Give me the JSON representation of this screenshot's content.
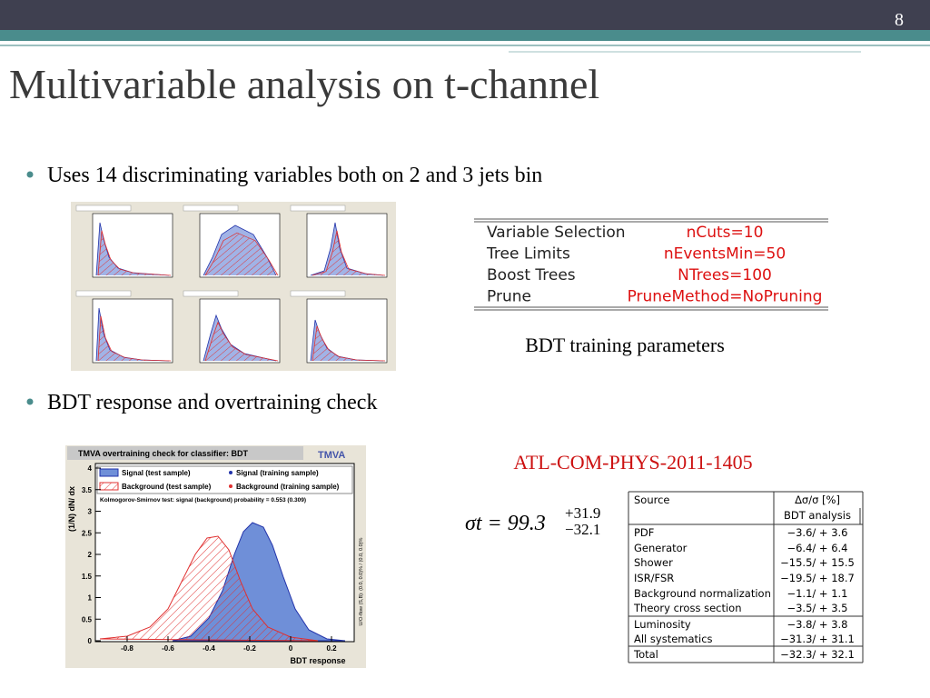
{
  "slide_number": "8",
  "title": "Multivariable analysis on t-channel",
  "bullets": [
    "Uses 14 discriminating variables both on 2 and 3 jets bin",
    "BDT response and overtraining check"
  ],
  "parameters_table": {
    "rows": [
      [
        "Variable Selection",
        "nCuts=10"
      ],
      [
        "Tree Limits",
        "nEventsMin=50"
      ],
      [
        "Boost Trees",
        "NTrees=100"
      ],
      [
        "Prune",
        "PruneMethod=NoPruning"
      ]
    ],
    "caption": "BDT training parameters"
  },
  "reference": "ATL-COM-PHYS-2011-1405",
  "cross_section": {
    "formula": "σt = 99.3",
    "up": "+31.9",
    "down": "−32.1"
  },
  "systematics_table": {
    "header": [
      "Source",
      "Δσ/σ [%]"
    ],
    "subheader": "BDT analysis",
    "rows": [
      [
        "PDF",
        "−3.6/ + 3.6"
      ],
      [
        "Generator",
        "−6.4/ + 6.4"
      ],
      [
        "Shower",
        "−15.5/ + 15.5"
      ],
      [
        "ISR/FSR",
        "−19.5/ + 18.7"
      ],
      [
        "Background normalization",
        "−1.1/ + 1.1"
      ],
      [
        "Theory cross section",
        "−3.5/ + 3.5"
      ],
      [
        "Luminosity",
        "−3.8/ + 3.8"
      ],
      [
        "All systematics",
        "−31.3/ + 31.1"
      ],
      [
        "Total",
        "−32.3/ + 32.1"
      ]
    ]
  },
  "overtraining_plot": {
    "title": "TMVA overtraining check for classifier: BDT",
    "logo": "TMVA",
    "legend": [
      "Signal (test sample)",
      "Signal (training sample)",
      "Background (test sample)",
      "Background (training sample)"
    ],
    "ks_text": "Kolmogorov-Smirnov test: signal (background) probability = 0.553 (0.309)",
    "x_label": "BDT response",
    "y_label": "(1/N) dN/ dx",
    "side_label": "U/O-flow (S,B): (0.0, 0.0)% / (0.0, 0.0)%",
    "xticks": [
      -0.8,
      -0.6,
      -0.4,
      -0.2,
      0,
      0.2
    ],
    "yticks": [
      0,
      0.5,
      1,
      1.5,
      2,
      2.5,
      3,
      3.5,
      4
    ]
  }
}
